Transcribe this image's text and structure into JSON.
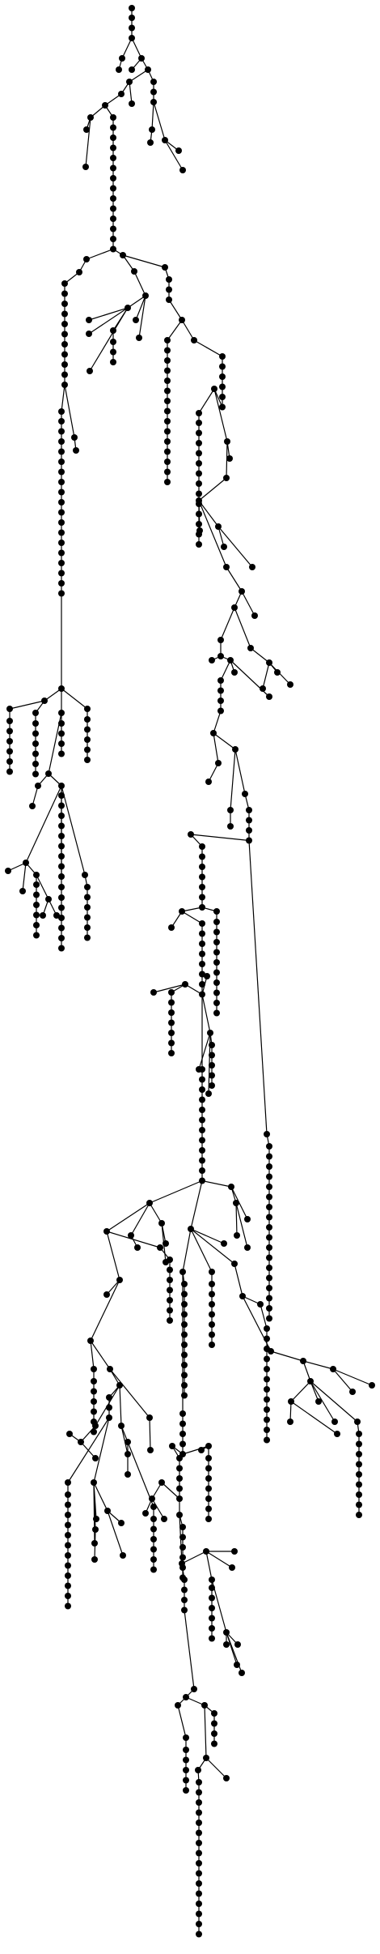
{
  "title": "",
  "diagram": {
    "type": "tree",
    "style": {
      "node_color": "#000000",
      "edge_color": "#000000",
      "background": "#ffffff"
    }
  }
}
